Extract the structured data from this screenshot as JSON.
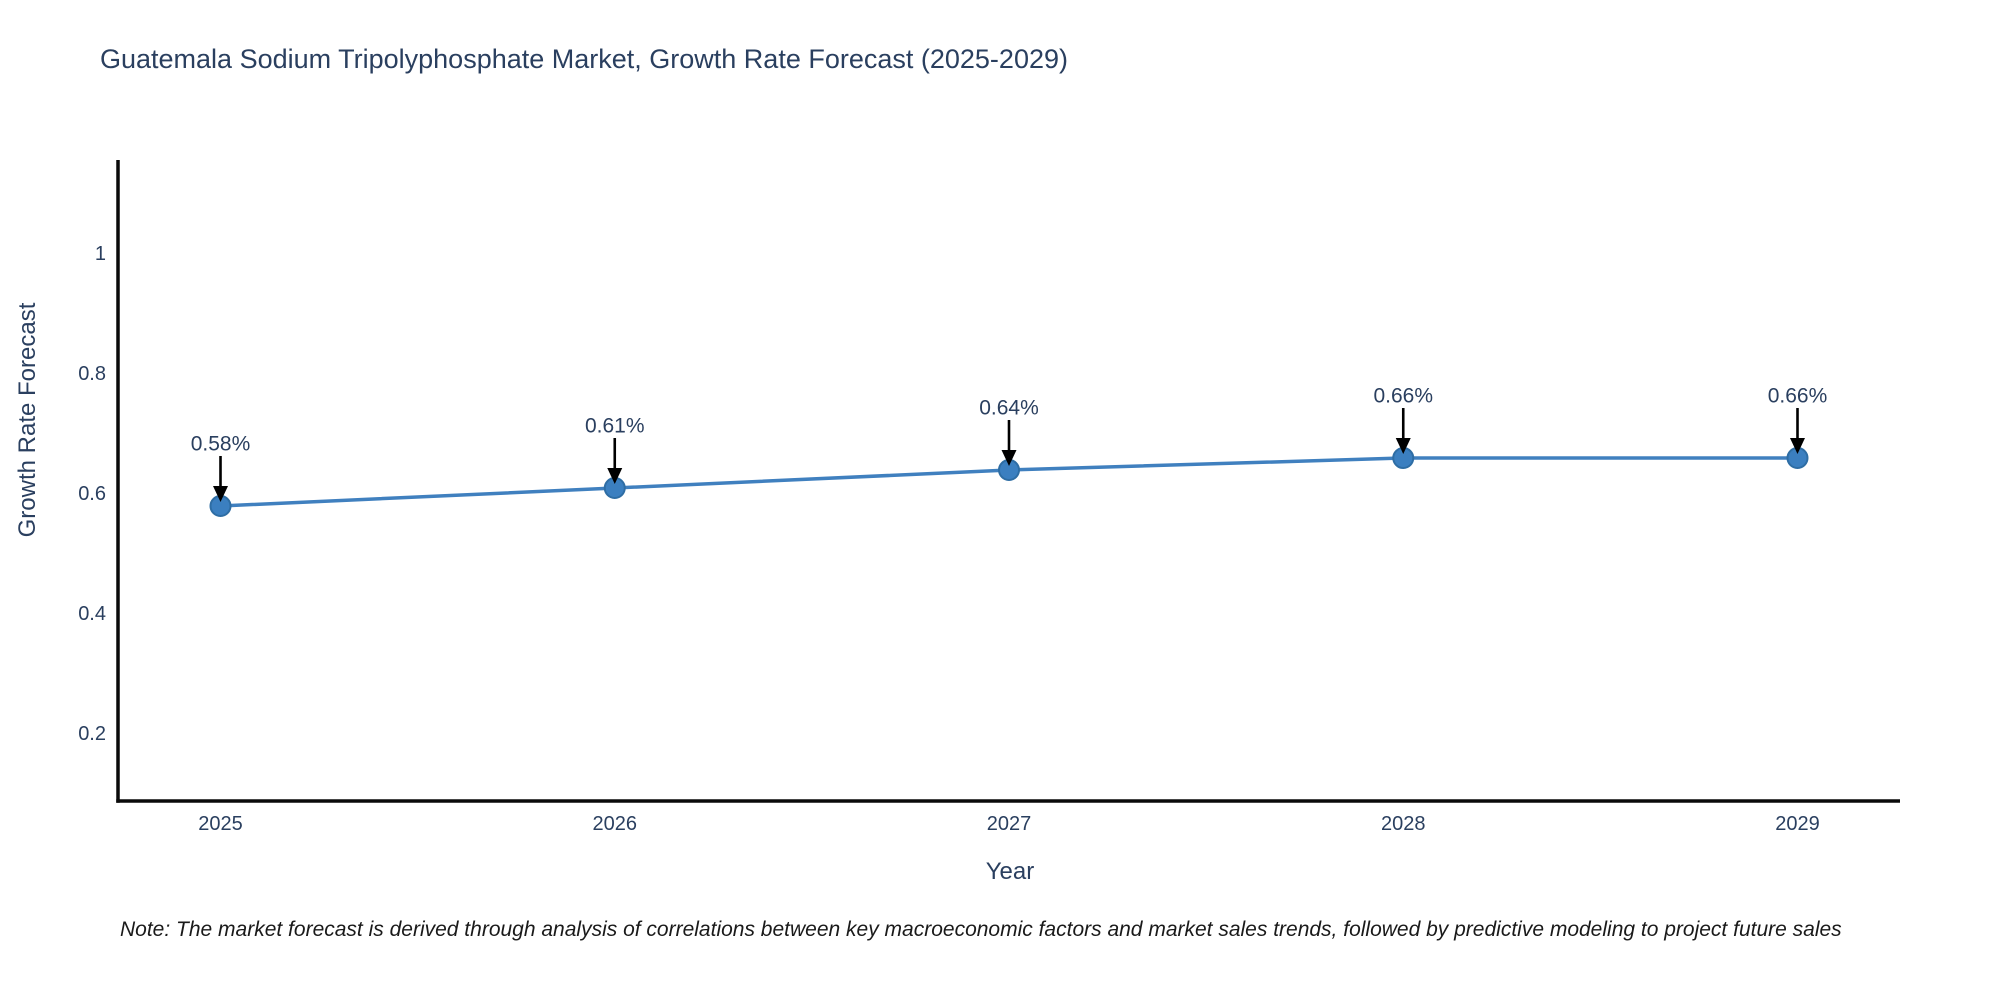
{
  "chart_data": {
    "type": "line",
    "title": "Guatemala Sodium Tripolyphosphate Market, Growth Rate Forecast (2025-2029)",
    "xlabel": "Year",
    "ylabel": "Growth Rate Forecast",
    "x": [
      2025,
      2026,
      2027,
      2028,
      2029
    ],
    "values": [
      0.58,
      0.61,
      0.64,
      0.66,
      0.66
    ],
    "point_labels": [
      "0.58%",
      "0.61%",
      "0.64%",
      "0.66%",
      "0.66%"
    ],
    "xtick_labels": [
      "2025",
      "2026",
      "2027",
      "2028",
      "2029"
    ],
    "ytick_values": [
      0.2,
      0.4,
      0.6,
      0.8,
      1
    ],
    "ytick_labels": [
      "0.2",
      "0.4",
      "0.6",
      "0.8",
      "1"
    ],
    "xlim": [
      2024.74,
      2029.26
    ],
    "ylim": [
      0.088,
      1.157
    ],
    "grid": false,
    "legend": "none",
    "colors": {
      "line": "#4080bf",
      "marker": "#3b7fc0",
      "marker_edge": "#2e6da4",
      "axis": "#0a0a0a",
      "tick_text": "#2a3f5f",
      "annotation_text": "#2a3f5f",
      "annotation_arrow": "#000000",
      "background": "#ffffff"
    },
    "note": "Note: The market forecast is derived through analysis of correlations between key macroeconomic factors and market sales trends, followed by predictive modeling to project future sales"
  }
}
